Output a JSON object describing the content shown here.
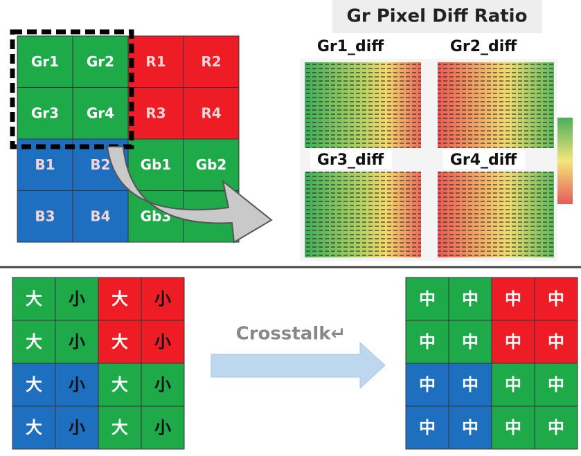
{
  "top_grid": {
    "rows": [
      [
        "Gr1",
        "Gr2",
        "R1",
        "R2"
      ],
      [
        "Gr3",
        "Gr4",
        "R3",
        "R4"
      ],
      [
        "B1",
        "B2",
        "Gb1",
        "Gb2"
      ],
      [
        "B3",
        "B4",
        "Gb3"
      ]
    ]
  },
  "heatmap": {
    "title": "Gr Pixel Diff Ratio",
    "panels": [
      "Gr1_diff",
      "Gr2_diff",
      "Gr3_diff",
      "Gr4_diff"
    ]
  },
  "bottom": {
    "left_grid": [
      [
        "大",
        "小",
        "大",
        "小"
      ],
      [
        "大",
        "小",
        "大",
        "小"
      ],
      [
        "大",
        "小",
        "大",
        "小"
      ],
      [
        "大",
        "小",
        "大",
        "小"
      ]
    ],
    "arrow_label": "Crosstalk↵",
    "right_grid": [
      [
        "中",
        "中",
        "中",
        "中"
      ],
      [
        "中",
        "中",
        "中",
        "中"
      ],
      [
        "中",
        "中",
        "中",
        "中"
      ],
      [
        "中",
        "中",
        "中",
        "中"
      ]
    ]
  }
}
